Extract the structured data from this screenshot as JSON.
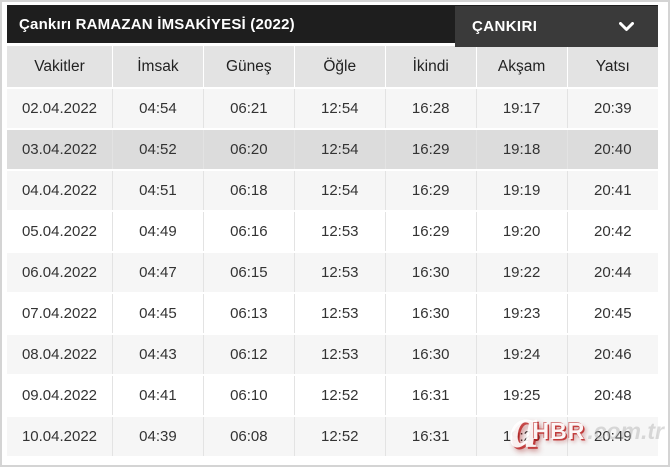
{
  "header": {
    "title": "Çankırı RAMAZAN İMSAKİYESİ (2022)",
    "city_select": {
      "value": "ÇANKIRI"
    }
  },
  "table": {
    "columns": [
      "Vakitler",
      "İmsak",
      "Güneş",
      "Öğle",
      "İkindi",
      "Akşam",
      "Yatsı"
    ],
    "rows": [
      {
        "date": "02.04.2022",
        "times": [
          "04:54",
          "06:21",
          "12:54",
          "16:28",
          "19:17",
          "20:39"
        ],
        "style": "stripe"
      },
      {
        "date": "03.04.2022",
        "times": [
          "04:52",
          "06:20",
          "12:54",
          "16:29",
          "19:18",
          "20:40"
        ],
        "style": "selected"
      },
      {
        "date": "04.04.2022",
        "times": [
          "04:51",
          "06:18",
          "12:54",
          "16:29",
          "19:19",
          "20:41"
        ],
        "style": "stripe"
      },
      {
        "date": "05.04.2022",
        "times": [
          "04:49",
          "06:16",
          "12:53",
          "16:29",
          "19:20",
          "20:42"
        ],
        "style": "plain"
      },
      {
        "date": "06.04.2022",
        "times": [
          "04:47",
          "06:15",
          "12:53",
          "16:30",
          "19:22",
          "20:44"
        ],
        "style": "stripe"
      },
      {
        "date": "07.04.2022",
        "times": [
          "04:45",
          "06:13",
          "12:53",
          "16:30",
          "19:23",
          "20:45"
        ],
        "style": "plain"
      },
      {
        "date": "08.04.2022",
        "times": [
          "04:43",
          "06:12",
          "12:53",
          "16:30",
          "19:24",
          "20:46"
        ],
        "style": "stripe"
      },
      {
        "date": "09.04.2022",
        "times": [
          "04:41",
          "06:10",
          "12:52",
          "16:31",
          "19:25",
          "20:48"
        ],
        "style": "plain"
      },
      {
        "date": "10.04.2022",
        "times": [
          "04:39",
          "06:08",
          "12:52",
          "16:31",
          "19:26",
          "20:49"
        ],
        "style": "stripe"
      }
    ]
  },
  "watermark": {
    "logo_letter": "a",
    "logo_text": "HBR",
    "suffix": ".com.tr"
  },
  "colors": {
    "topbar_bg": "#1e1e1e",
    "dropdown_bg": "#3a3a3a",
    "table_header_bg": "#e3e3e3",
    "stripe_row_bg": "#f6f6f6",
    "selected_row_bg": "#dcdcdc",
    "watermark_red": "#b91919",
    "frame_border": "#d4d4d4"
  }
}
